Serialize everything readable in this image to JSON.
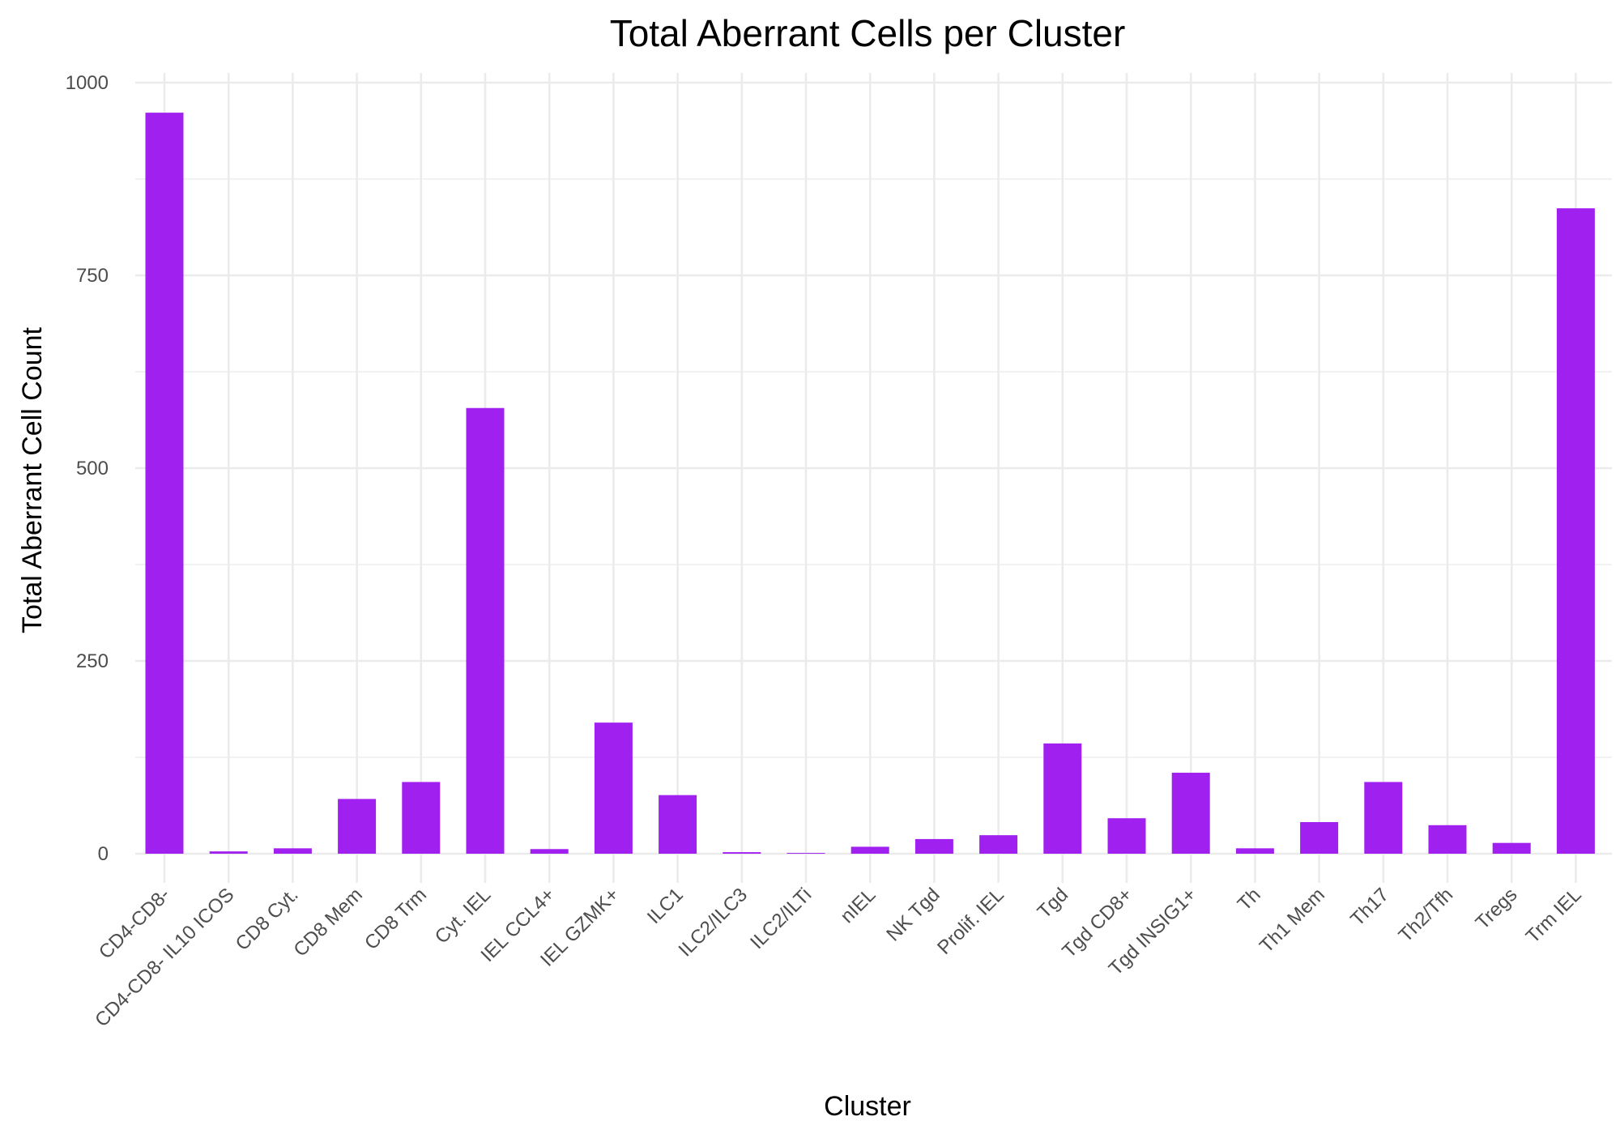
{
  "chart_data": {
    "type": "bar",
    "title": "Total Aberrant Cells per Cluster",
    "xlabel": "Cluster",
    "ylabel": "Total Aberrant Cell Count",
    "ylim": [
      0,
      1000
    ],
    "yticks": [
      0,
      250,
      500,
      750,
      1000
    ],
    "grid": true,
    "legend": "none",
    "bar_color": "#A020F0",
    "categories": [
      "CD4-CD8-",
      "CD4-CD8- IL10 ICOS",
      "CD8 Cyt.",
      "CD8 Mem",
      "CD8 Trm",
      "Cyt. IEL",
      "IEL CCL4+",
      "IEL GZMK+",
      "ILC1",
      "ILC2/ILC3",
      "ILC2/ILTi",
      "nIEL",
      "NK Tgd",
      "Prolif. IEL",
      "Tgd",
      "Tgd CD8+",
      "Tgd INSIG1+",
      "Th",
      "Th1 Mem",
      "Th17",
      "Th2/Tfh",
      "Tregs",
      "Trm IEL"
    ],
    "values": [
      961,
      3,
      7,
      71,
      93,
      578,
      6,
      170,
      76,
      2,
      1,
      9,
      19,
      24,
      143,
      46,
      105,
      7,
      41,
      93,
      37,
      14,
      837
    ]
  }
}
